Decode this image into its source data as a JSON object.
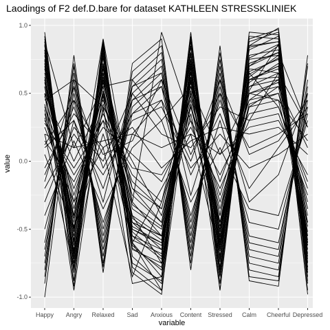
{
  "chart_data": {
    "type": "line",
    "title": "Laodings of F2 def.D.bare for dataset KATHLEEN STRESSKLINIEK",
    "xlabel": "variable",
    "ylabel": "value",
    "categories": [
      "Happy",
      "Angry",
      "Relaxed",
      "Sad",
      "Anxious",
      "Content",
      "Stressed",
      "Calm",
      "Cheerful",
      "Depressed"
    ],
    "ylim": [
      -1.08,
      1.05
    ],
    "yticks": [
      1.0,
      0.5,
      0.0,
      -0.5,
      -1.0
    ],
    "ytick_labels": [
      "1.0",
      "0.5",
      "0.0",
      "-0.5",
      "-1.0"
    ],
    "grid": true,
    "background": "#ebebeb",
    "gridline_color": "#ffffff",
    "line_color": "#000000",
    "series": [
      {
        "values": [
          0.9,
          -0.68,
          0.85,
          -0.55,
          -0.72,
          0.88,
          -0.7,
          0.82,
          0.92,
          -0.8
        ]
      },
      {
        "values": [
          0.85,
          -0.75,
          0.8,
          -0.62,
          -0.8,
          0.8,
          -0.78,
          0.88,
          0.95,
          -0.85
        ]
      },
      {
        "values": [
          0.78,
          -0.6,
          0.72,
          -0.45,
          -0.65,
          0.75,
          -0.62,
          0.7,
          0.85,
          -0.72
        ]
      },
      {
        "values": [
          0.92,
          -0.82,
          0.88,
          -0.7,
          -0.9,
          0.92,
          -0.85,
          0.9,
          0.97,
          -0.9
        ]
      },
      {
        "values": [
          0.7,
          -0.5,
          0.65,
          -0.4,
          -0.55,
          0.68,
          -0.55,
          0.62,
          0.78,
          -0.6
        ]
      },
      {
        "values": [
          0.6,
          -0.45,
          0.58,
          -0.35,
          -0.5,
          0.62,
          -0.48,
          0.58,
          0.72,
          -0.55
        ]
      },
      {
        "values": [
          0.88,
          -0.88,
          0.9,
          -0.78,
          -0.95,
          0.85,
          -0.9,
          0.92,
          0.9,
          -0.95
        ]
      },
      {
        "values": [
          0.75,
          -0.7,
          0.78,
          -0.65,
          -0.75,
          0.72,
          -0.72,
          0.78,
          0.82,
          -0.78
        ]
      },
      {
        "values": [
          0.82,
          -0.92,
          0.86,
          -0.82,
          -0.98,
          0.9,
          -0.95,
          0.95,
          0.93,
          -0.98
        ]
      },
      {
        "values": [
          0.65,
          -0.55,
          0.7,
          -0.5,
          -0.62,
          0.65,
          -0.6,
          0.66,
          0.75,
          -0.65
        ]
      },
      {
        "values": [
          0.55,
          -0.35,
          0.5,
          -0.25,
          -0.45,
          0.58,
          -0.4,
          0.55,
          0.65,
          -0.48
        ]
      },
      {
        "values": [
          0.95,
          -0.78,
          0.82,
          -0.6,
          -0.85,
          0.95,
          -0.82,
          0.85,
          0.98,
          -0.88
        ]
      },
      {
        "values": [
          0.8,
          -0.62,
          0.76,
          -0.58,
          -0.68,
          0.78,
          -0.66,
          0.76,
          0.86,
          -0.7
        ]
      },
      {
        "values": [
          0.72,
          -0.66,
          0.68,
          -0.52,
          -0.7,
          0.7,
          -0.64,
          0.72,
          0.8,
          -0.74
        ]
      },
      {
        "values": [
          0.86,
          -0.72,
          0.84,
          -0.64,
          -0.78,
          0.84,
          -0.74,
          0.84,
          0.88,
          -0.82
        ]
      },
      {
        "values": [
          0.62,
          -0.58,
          0.6,
          -0.48,
          -0.6,
          0.6,
          -0.56,
          0.6,
          0.7,
          -0.62
        ]
      },
      {
        "values": [
          -0.8,
          0.7,
          -0.75,
          0.6,
          0.8,
          -0.7,
          0.75,
          -0.8,
          -0.85,
          0.7
        ]
      },
      {
        "values": [
          -0.7,
          0.6,
          -0.65,
          0.5,
          0.7,
          -0.6,
          0.65,
          -0.7,
          -0.75,
          0.6
        ]
      },
      {
        "values": [
          -0.9,
          0.78,
          -0.82,
          0.72,
          0.9,
          -0.8,
          0.85,
          -0.88,
          -0.92,
          0.78
        ]
      },
      {
        "values": [
          -0.6,
          0.5,
          -0.55,
          0.4,
          0.6,
          -0.5,
          0.55,
          -0.6,
          -0.65,
          0.5
        ]
      },
      {
        "values": [
          -1.0,
          0.65,
          -0.7,
          0.55,
          0.75,
          -0.65,
          0.7,
          -0.75,
          -0.8,
          0.55
        ]
      },
      {
        "values": [
          -0.75,
          0.55,
          -0.6,
          0.45,
          0.65,
          -0.55,
          0.6,
          -0.65,
          -0.7,
          0.45
        ]
      },
      {
        "values": [
          -0.85,
          0.72,
          -0.78,
          0.66,
          0.85,
          -0.75,
          0.8,
          -0.85,
          -0.88,
          0.72
        ]
      },
      {
        "values": [
          -0.65,
          0.45,
          -0.5,
          0.35,
          0.55,
          -0.45,
          0.5,
          -0.55,
          -0.6,
          0.4
        ]
      },
      {
        "values": [
          0.4,
          -0.2,
          0.35,
          -0.1,
          -0.3,
          0.4,
          -0.25,
          0.45,
          0.5,
          -0.3
        ]
      },
      {
        "values": [
          0.3,
          -0.1,
          0.25,
          0.05,
          -0.15,
          0.3,
          -0.1,
          0.35,
          0.4,
          -0.2
        ]
      },
      {
        "values": [
          0.2,
          0.1,
          0.15,
          0.2,
          0.1,
          0.2,
          0.05,
          0.25,
          0.3,
          -0.1
        ]
      },
      {
        "values": [
          0.1,
          0.3,
          -0.2,
          0.45,
          0.55,
          -0.1,
          0.35,
          -0.2,
          0.1,
          0.4
        ]
      },
      {
        "values": [
          -0.1,
          0.4,
          -0.3,
          0.55,
          0.65,
          -0.25,
          0.45,
          -0.3,
          -0.1,
          0.5
        ]
      },
      {
        "values": [
          -0.2,
          0.2,
          -0.1,
          0.3,
          0.4,
          -0.05,
          0.2,
          -0.05,
          0.05,
          0.2
        ]
      },
      {
        "values": [
          0.5,
          0.0,
          0.45,
          -0.2,
          -0.35,
          0.5,
          -0.15,
          0.45,
          0.6,
          -0.35
        ]
      },
      {
        "values": [
          0.45,
          0.6,
          0.4,
          0.0,
          -0.4,
          0.45,
          -0.3,
          0.4,
          0.55,
          0.1
        ]
      },
      {
        "values": [
          -0.3,
          0.25,
          0.0,
          0.5,
          0.2,
          0.1,
          0.4,
          0.3,
          0.65,
          0.25
        ]
      },
      {
        "values": [
          0.35,
          -0.4,
          0.9,
          -0.3,
          0.95,
          0.3,
          -0.5,
          0.6,
          0.7,
          -0.45
        ]
      },
      {
        "values": [
          0.25,
          -0.3,
          0.55,
          0.6,
          0.3,
          0.55,
          0.05,
          0.5,
          0.45,
          0.15
        ]
      },
      {
        "values": [
          0.15,
          -0.15,
          0.3,
          -0.05,
          -0.1,
          0.25,
          -0.2,
          0.3,
          0.35,
          -0.25
        ]
      },
      {
        "values": [
          0.68,
          -0.52,
          0.62,
          -0.42,
          -0.58,
          0.66,
          -0.52,
          0.64,
          0.76,
          -0.58
        ]
      },
      {
        "values": [
          0.58,
          -0.42,
          0.52,
          -0.32,
          -0.48,
          0.55,
          -0.45,
          0.6,
          0.68,
          -0.52
        ]
      },
      {
        "values": [
          0.48,
          -0.25,
          0.42,
          -0.15,
          -0.35,
          0.48,
          -0.35,
          0.5,
          0.58,
          -0.4
        ]
      },
      {
        "values": [
          0.38,
          -0.65,
          0.6,
          -0.4,
          -0.75,
          0.62,
          -0.6,
          0.55,
          0.6,
          -0.6
        ]
      },
      {
        "values": [
          0.05,
          -0.5,
          0.2,
          -0.45,
          -0.55,
          0.4,
          -0.45,
          0.42,
          0.5,
          -0.35
        ]
      },
      {
        "values": [
          -0.05,
          0.35,
          0.1,
          0.25,
          -0.05,
          0.15,
          0.25,
          0.2,
          0.25,
          0.05
        ]
      },
      {
        "values": [
          -0.4,
          0.15,
          -0.35,
          0.1,
          0.3,
          -0.3,
          0.1,
          -0.35,
          -0.4,
          0.3
        ]
      },
      {
        "values": [
          -0.5,
          0.3,
          -0.45,
          0.2,
          0.45,
          -0.4,
          0.3,
          -0.45,
          -0.5,
          0.35
        ]
      },
      {
        "values": [
          0.55,
          -0.8,
          0.65,
          -0.75,
          -0.88,
          0.7,
          -0.8,
          0.68,
          0.65,
          -0.78
        ]
      },
      {
        "values": [
          0.42,
          -0.58,
          0.48,
          -0.55,
          -0.65,
          0.52,
          -0.58,
          0.5,
          0.55,
          -0.55
        ]
      },
      {
        "values": [
          0.32,
          -0.48,
          0.38,
          -0.45,
          -0.55,
          0.42,
          -0.48,
          0.4,
          0.45,
          -0.45
        ]
      },
      {
        "values": [
          0.74,
          -0.4,
          0.7,
          -0.2,
          -0.45,
          0.65,
          -0.45,
          0.6,
          0.62,
          -0.62
        ]
      },
      {
        "values": [
          0.82,
          -0.5,
          0.72,
          -0.3,
          -0.55,
          0.74,
          -0.55,
          0.72,
          0.8,
          -0.68
        ]
      },
      {
        "values": [
          0.12,
          0.45,
          0.05,
          0.15,
          0.6,
          0.05,
          0.5,
          0.1,
          0.2,
          0.35
        ]
      },
      {
        "values": [
          -0.15,
          0.55,
          -0.05,
          0.35,
          0.45,
          0.0,
          0.6,
          0.05,
          0.15,
          0.45
        ]
      },
      {
        "values": [
          0.28,
          -0.05,
          0.3,
          -0.6,
          -0.2,
          0.2,
          -0.7,
          0.65,
          0.4,
          -0.15
        ]
      },
      {
        "values": [
          0.6,
          -0.3,
          0.1,
          -0.85,
          -0.3,
          0.58,
          -0.4,
          0.7,
          0.8,
          0.25
        ]
      },
      {
        "values": [
          0.88,
          0.1,
          0.55,
          -0.5,
          -0.6,
          0.35,
          -0.65,
          0.52,
          0.86,
          -0.75
        ]
      },
      {
        "values": [
          0.2,
          -0.8,
          0.4,
          -0.9,
          -0.85,
          0.8,
          -0.85,
          0.75,
          0.78,
          -0.82
        ]
      },
      {
        "values": [
          0.5,
          -0.95,
          0.5,
          -0.6,
          -0.95,
          0.6,
          -0.95,
          0.85,
          0.88,
          -0.6
        ]
      }
    ]
  }
}
